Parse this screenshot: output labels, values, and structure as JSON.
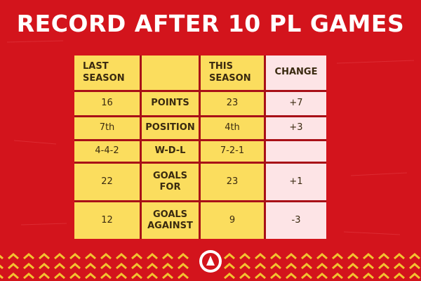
{
  "title": "RECORD AFTER 10 PL GAMES",
  "table": {
    "header": {
      "last": "LAST SEASON",
      "this": "THIS SEASON",
      "change": "CHANGE"
    },
    "rows": [
      {
        "last": "16",
        "stat": "POINTS",
        "this": "23",
        "change": "+7"
      },
      {
        "last": "7th",
        "stat": "POSITION",
        "this": "4th",
        "change": "+3"
      },
      {
        "last": "4-4-2",
        "stat": "W-D-L",
        "this": "7-2-1"
      },
      {
        "last": "22",
        "stat": "GOALS FOR",
        "this": "23",
        "change": "+1"
      },
      {
        "last": "12",
        "stat": "GOALS AGAINST",
        "this": "9",
        "change": "-3"
      }
    ]
  }
}
